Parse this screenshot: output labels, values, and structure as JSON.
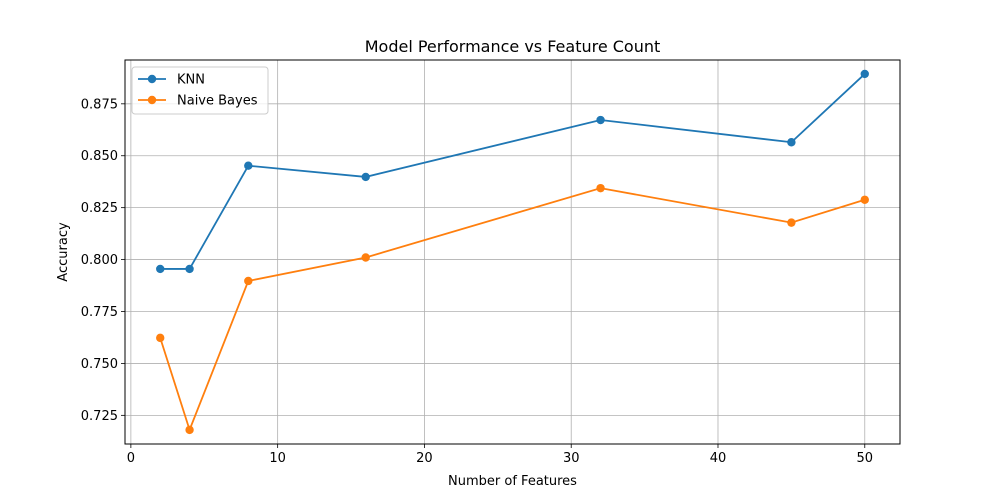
{
  "chart_data": {
    "type": "line",
    "title": "Model Performance vs Feature Count",
    "xlabel": "Number of Features",
    "ylabel": "Accuracy",
    "xlim": [
      -0.4,
      52.4
    ],
    "ylim": [
      0.7112,
      0.8961
    ],
    "x_ticks": [
      0,
      10,
      20,
      30,
      40,
      50
    ],
    "x_tick_labels": [
      "0",
      "10",
      "20",
      "30",
      "40",
      "50"
    ],
    "y_ticks": [
      0.725,
      0.75,
      0.775,
      0.8,
      0.825,
      0.85,
      0.875
    ],
    "y_tick_labels": [
      "0.725",
      "0.750",
      "0.775",
      "0.800",
      "0.825",
      "0.850",
      "0.875"
    ],
    "grid": true,
    "legend_position": "top-left",
    "x": [
      2,
      4,
      8,
      16,
      32,
      45,
      50
    ],
    "series": [
      {
        "name": "KNN",
        "color": "#1f77b4",
        "marker": "circle",
        "values": [
          0.7955,
          0.7955,
          0.8452,
          0.8398,
          0.8672,
          0.8565,
          0.8894
        ]
      },
      {
        "name": "Naive Bayes",
        "color": "#ff7f0e",
        "marker": "circle",
        "values": [
          0.7623,
          0.718,
          0.7897,
          0.801,
          0.8344,
          0.8178,
          0.8288
        ]
      }
    ]
  }
}
